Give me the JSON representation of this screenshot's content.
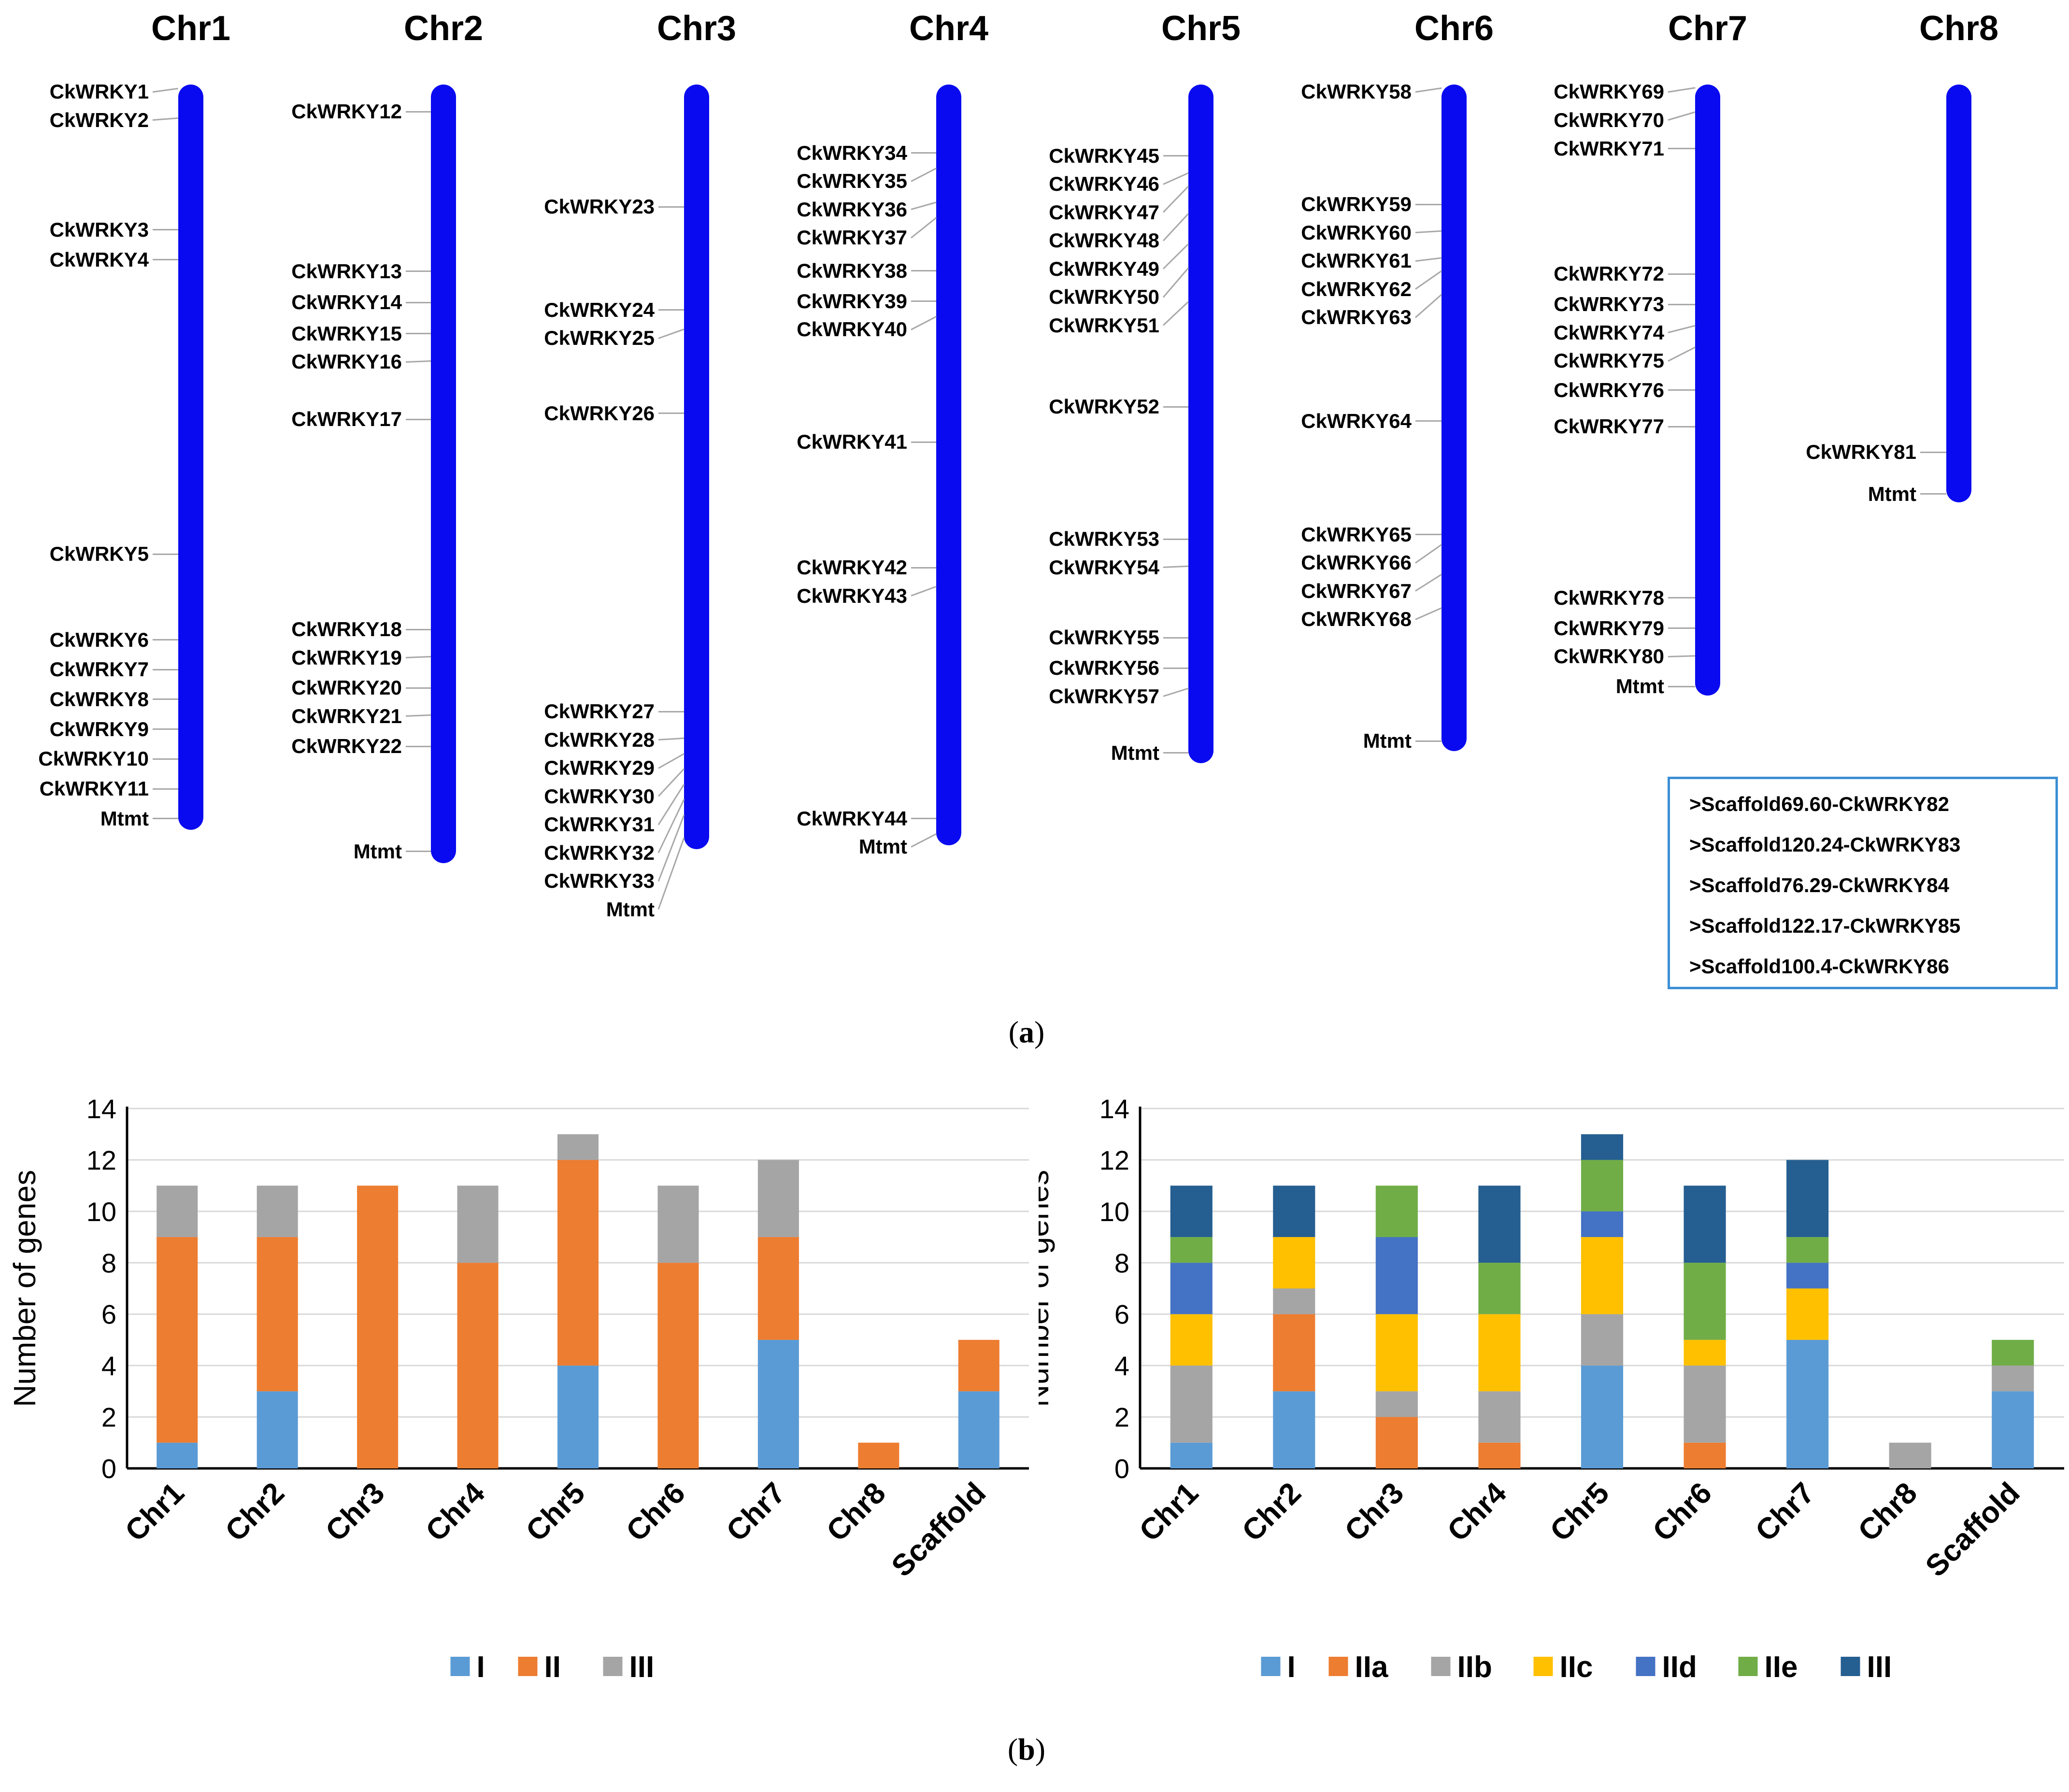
{
  "bar_color": "#0a0af0",
  "chromosomes": [
    {
      "name": "Chr1",
      "genes": [
        {
          "id": "CkWRKY1",
          "pos": 0.5
        },
        {
          "id": "CkWRKY2",
          "pos": 4.5
        },
        {
          "id": "CkWRKY3",
          "pos": 19.5
        },
        {
          "id": "CkWRKY4",
          "pos": 23.5
        },
        {
          "id": "CkWRKY5",
          "pos": 63
        },
        {
          "id": "CkWRKY6",
          "pos": 74.5
        },
        {
          "id": "CkWRKY7",
          "pos": 78.5
        },
        {
          "id": "CkWRKY8",
          "pos": 82.5
        },
        {
          "id": "CkWRKY9",
          "pos": 86.5
        },
        {
          "id": "CkWRKY10",
          "pos": 90.5
        },
        {
          "id": "CkWRKY11",
          "pos": 94.5
        },
        {
          "id": "Mtmt",
          "pos": 98.5
        }
      ]
    },
    {
      "name": "Chr2",
      "genes": [
        {
          "id": "CkWRKY12",
          "pos": 3.5
        },
        {
          "id": "CkWRKY13",
          "pos": 24
        },
        {
          "id": "CkWRKY14",
          "pos": 28
        },
        {
          "id": "CkWRKY15",
          "pos": 32
        },
        {
          "id": "CkWRKY16",
          "pos": 35.5
        },
        {
          "id": "CkWRKY17",
          "pos": 43
        },
        {
          "id": "CkWRKY18",
          "pos": 70
        },
        {
          "id": "CkWRKY19",
          "pos": 73.5
        },
        {
          "id": "CkWRKY20",
          "pos": 77.5
        },
        {
          "id": "CkWRKY21",
          "pos": 81
        },
        {
          "id": "CkWRKY22",
          "pos": 85
        },
        {
          "id": "Mtmt",
          "pos": 98.5
        }
      ]
    },
    {
      "name": "Chr3",
      "genes": [
        {
          "id": "CkWRKY23",
          "pos": 16
        },
        {
          "id": "CkWRKY24",
          "pos": 29.5
        },
        {
          "id": "CkWRKY25",
          "pos": 32
        },
        {
          "id": "CkWRKY26",
          "pos": 43
        },
        {
          "id": "CkWRKY27",
          "pos": 82
        },
        {
          "id": "CkWRKY28",
          "pos": 85.5
        },
        {
          "id": "CkWRKY29",
          "pos": 87.5
        },
        {
          "id": "CkWRKY30",
          "pos": 89.5
        },
        {
          "id": "CkWRKY31",
          "pos": 91.5
        },
        {
          "id": "CkWRKY32",
          "pos": 93.5
        },
        {
          "id": "CkWRKY33",
          "pos": 95.5
        },
        {
          "id": "Mtmt",
          "pos": 98.5
        }
      ]
    },
    {
      "name": "Chr4",
      "genes": [
        {
          "id": "CkWRKY34",
          "pos": 9
        },
        {
          "id": "CkWRKY35",
          "pos": 11
        },
        {
          "id": "CkWRKY36",
          "pos": 15.5
        },
        {
          "id": "CkWRKY37",
          "pos": 17.5
        },
        {
          "id": "CkWRKY38",
          "pos": 24.5
        },
        {
          "id": "CkWRKY39",
          "pos": 28.5
        },
        {
          "id": "CkWRKY40",
          "pos": 30.5
        },
        {
          "id": "CkWRKY41",
          "pos": 47
        },
        {
          "id": "CkWRKY42",
          "pos": 63.5
        },
        {
          "id": "CkWRKY43",
          "pos": 66
        },
        {
          "id": "CkWRKY44",
          "pos": 96.5
        },
        {
          "id": "Mtmt",
          "pos": 98.5
        }
      ]
    },
    {
      "name": "Chr5",
      "genes": [
        {
          "id": "CkWRKY45",
          "pos": 10.5
        },
        {
          "id": "CkWRKY46",
          "pos": 13
        },
        {
          "id": "CkWRKY47",
          "pos": 15
        },
        {
          "id": "CkWRKY48",
          "pos": 19
        },
        {
          "id": "CkWRKY49",
          "pos": 23.5
        },
        {
          "id": "CkWRKY50",
          "pos": 27
        },
        {
          "id": "CkWRKY51",
          "pos": 32
        },
        {
          "id": "CkWRKY52",
          "pos": 47.5
        },
        {
          "id": "CkWRKY53",
          "pos": 67
        },
        {
          "id": "CkWRKY54",
          "pos": 71
        },
        {
          "id": "CkWRKY55",
          "pos": 81.5
        },
        {
          "id": "CkWRKY56",
          "pos": 86
        },
        {
          "id": "CkWRKY57",
          "pos": 89
        },
        {
          "id": "Mtmt",
          "pos": 98.5
        }
      ]
    },
    {
      "name": "Chr6",
      "genes": [
        {
          "id": "CkWRKY58",
          "pos": 0.5
        },
        {
          "id": "CkWRKY59",
          "pos": 18
        },
        {
          "id": "CkWRKY60",
          "pos": 22
        },
        {
          "id": "CkWRKY61",
          "pos": 26
        },
        {
          "id": "CkWRKY62",
          "pos": 28
        },
        {
          "id": "CkWRKY63",
          "pos": 31.5
        },
        {
          "id": "CkWRKY64",
          "pos": 50.5
        },
        {
          "id": "CkWRKY65",
          "pos": 67.5
        },
        {
          "id": "CkWRKY66",
          "pos": 69
        },
        {
          "id": "CkWRKY67",
          "pos": 73.5
        },
        {
          "id": "CkWRKY68",
          "pos": 78.5
        },
        {
          "id": "Mtmt",
          "pos": 98.5
        }
      ]
    },
    {
      "name": "Chr7",
      "genes": [
        {
          "id": "CkWRKY69",
          "pos": 0.5
        },
        {
          "id": "CkWRKY70",
          "pos": 4.5
        },
        {
          "id": "CkWRKY71",
          "pos": 10.5
        },
        {
          "id": "CkWRKY72",
          "pos": 31
        },
        {
          "id": "CkWRKY73",
          "pos": 36
        },
        {
          "id": "CkWRKY74",
          "pos": 39.5
        },
        {
          "id": "CkWRKY75",
          "pos": 43
        },
        {
          "id": "CkWRKY76",
          "pos": 50
        },
        {
          "id": "CkWRKY77",
          "pos": 56
        },
        {
          "id": "CkWRKY78",
          "pos": 84
        },
        {
          "id": "CkWRKY79",
          "pos": 89
        },
        {
          "id": "CkWRKY80",
          "pos": 93.5
        },
        {
          "id": "Mtmt",
          "pos": 98.5
        }
      ]
    },
    {
      "name": "Chr8",
      "genes": [
        {
          "id": "CkWRKY81",
          "pos": 88
        },
        {
          "id": "Mtmt",
          "pos": 98
        }
      ]
    }
  ],
  "scaffold_list": [
    ">Scaffold69.60-CkWRKY82",
    ">Scaffold120.24-CkWRKY83",
    ">Scaffold76.29-CkWRKY84",
    ">Scaffold122.17-CkWRKY85",
    ">Scaffold100.4-CkWRKY86"
  ],
  "captions": {
    "a_open": "(",
    "a_letter": "a",
    "a_close": ")",
    "b_open": "(",
    "b_letter": "b",
    "b_close": ")"
  },
  "chart_data": [
    {
      "type": "bar",
      "stacked": true,
      "title": "",
      "xlabel": "",
      "ylabel": "Number of genes",
      "ylim": [
        0,
        14
      ],
      "yticks": [
        0,
        2,
        4,
        6,
        8,
        10,
        12,
        14
      ],
      "grid": true,
      "legend": "bottom",
      "categories": [
        "Chr1",
        "Chr2",
        "Chr3",
        "Chr4",
        "Chr5",
        "Chr6",
        "Chr7",
        "Chr8",
        "Scaffold"
      ],
      "series": [
        {
          "name": "I",
          "color": "#5b9bd5",
          "values": [
            1,
            3,
            0,
            0,
            4,
            0,
            5,
            0,
            3
          ]
        },
        {
          "name": "II",
          "color": "#ed7d31",
          "values": [
            8,
            6,
            11,
            8,
            8,
            8,
            4,
            1,
            2
          ]
        },
        {
          "name": "III",
          "color": "#a5a5a5",
          "values": [
            2,
            2,
            0,
            3,
            1,
            3,
            3,
            0,
            0
          ]
        }
      ]
    },
    {
      "type": "bar",
      "stacked": true,
      "title": "",
      "xlabel": "",
      "ylabel": "Number of genes",
      "ylim": [
        0,
        14
      ],
      "yticks": [
        0,
        2,
        4,
        6,
        8,
        10,
        12,
        14
      ],
      "grid": true,
      "legend": "bottom",
      "categories": [
        "Chr1",
        "Chr2",
        "Chr3",
        "Chr4",
        "Chr5",
        "Chr6",
        "Chr7",
        "Chr8",
        "Scaffold"
      ],
      "series": [
        {
          "name": "I",
          "color": "#5b9bd5",
          "values": [
            1,
            3,
            0,
            0,
            4,
            0,
            5,
            0,
            3
          ]
        },
        {
          "name": "IIa",
          "color": "#ed7d31",
          "values": [
            0,
            3,
            2,
            1,
            0,
            1,
            0,
            0,
            0
          ]
        },
        {
          "name": "IIb",
          "color": "#a5a5a5",
          "values": [
            3,
            1,
            1,
            2,
            2,
            3,
            0,
            1,
            1
          ]
        },
        {
          "name": "IIc",
          "color": "#ffc000",
          "values": [
            2,
            2,
            3,
            3,
            3,
            1,
            2,
            0,
            0
          ]
        },
        {
          "name": "IId",
          "color": "#4472c4",
          "values": [
            2,
            0,
            3,
            0,
            1,
            0,
            1,
            0,
            0
          ]
        },
        {
          "name": "IIe",
          "color": "#70ad47",
          "values": [
            1,
            0,
            2,
            2,
            2,
            3,
            1,
            0,
            1
          ]
        },
        {
          "name": "III",
          "color": "#255e91",
          "values": [
            2,
            2,
            0,
            3,
            1,
            3,
            3,
            0,
            0
          ]
        }
      ]
    }
  ]
}
